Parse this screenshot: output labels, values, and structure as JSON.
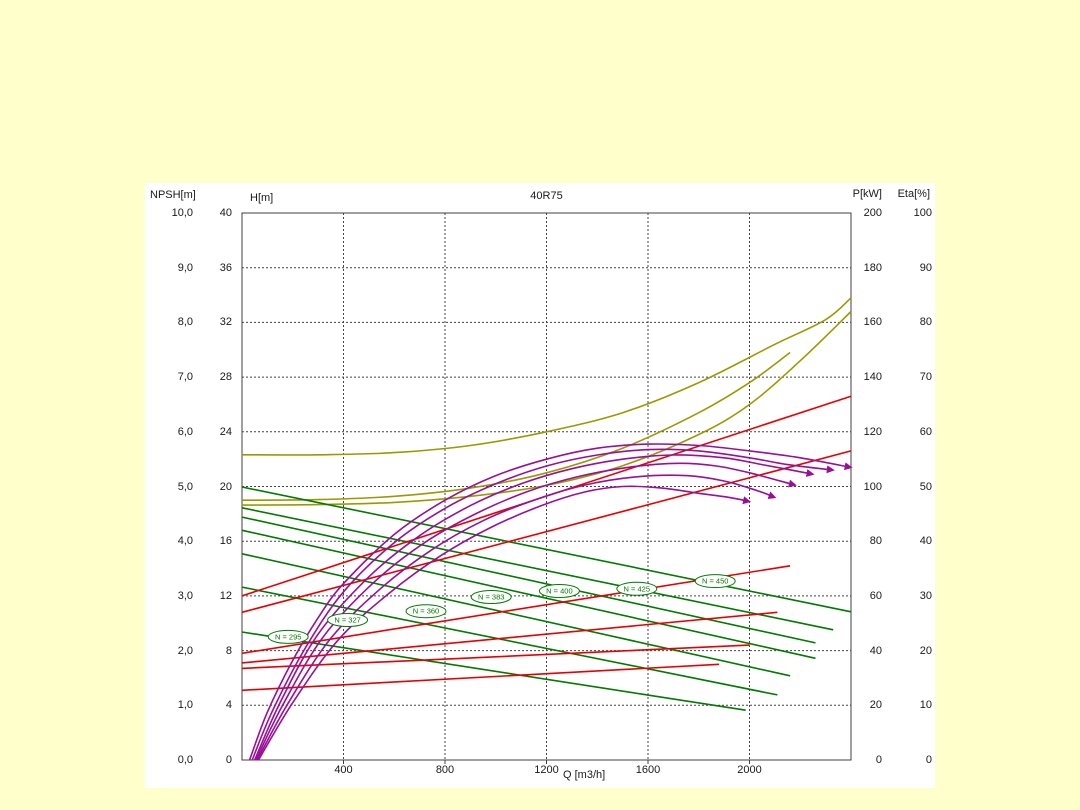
{
  "page": {
    "background": "#FFFFCC",
    "panel_background": "#FFFFFF"
  },
  "title": "40R75",
  "axes": {
    "npsh": {
      "title": "NPSH[m]",
      "max": 10,
      "ticks": [
        "10,0",
        "9,0",
        "8,0",
        "7,0",
        "6,0",
        "5,0",
        "4,0",
        "3,0",
        "2,0",
        "1,0",
        "0,0"
      ]
    },
    "h": {
      "title": "H[m]",
      "max": 40,
      "ticks": [
        "40",
        "36",
        "32",
        "28",
        "24",
        "20",
        "16",
        "12",
        "8",
        "4",
        "0"
      ]
    },
    "p": {
      "title": "P[kW]",
      "max": 200,
      "ticks": [
        "200",
        "180",
        "160",
        "140",
        "120",
        "100",
        "80",
        "60",
        "40",
        "20",
        "0"
      ]
    },
    "eta": {
      "title": "Eta[%]",
      "max": 100,
      "ticks": [
        "100",
        "90",
        "80",
        "70",
        "60",
        "50",
        "40",
        "30",
        "20",
        "10",
        "0"
      ]
    },
    "q": {
      "title": "Q [m3/h]",
      "max": 2400,
      "grid_ticks": [
        400,
        800,
        1200,
        1600,
        2000
      ],
      "tick_labels": [
        "400",
        "800",
        "1200",
        "1600",
        "2000"
      ]
    }
  },
  "chart_data": {
    "type": "line",
    "title": "40R75",
    "xlabel": "Q [m3/h]",
    "x_range": [
      0,
      2400
    ],
    "grid": true,
    "colors": {
      "head": "#971097",
      "power": "#E80000",
      "efficiency": "#007A00",
      "npsh": "#9A9A00"
    },
    "series": [
      {
        "id": "npsh-1",
        "family": "npsh",
        "axis": "npsh",
        "color": "#9A9A00",
        "arrow": false,
        "points": [
          [
            0,
            5.58
          ],
          [
            300,
            5.58
          ],
          [
            600,
            5.62
          ],
          [
            900,
            5.75
          ],
          [
            1200,
            6.0
          ],
          [
            1500,
            6.35
          ],
          [
            1800,
            6.9
          ],
          [
            2100,
            7.6
          ],
          [
            2300,
            8.05
          ],
          [
            2400,
            8.45
          ]
        ]
      },
      {
        "id": "npsh-2",
        "family": "npsh",
        "axis": "npsh",
        "color": "#9A9A00",
        "arrow": false,
        "points": [
          [
            0,
            4.75
          ],
          [
            300,
            4.76
          ],
          [
            600,
            4.82
          ],
          [
            900,
            4.97
          ],
          [
            1200,
            5.25
          ],
          [
            1500,
            5.7
          ],
          [
            1800,
            6.35
          ],
          [
            2000,
            6.9
          ],
          [
            2160,
            7.45
          ]
        ]
      },
      {
        "id": "npsh-3",
        "family": "npsh",
        "axis": "npsh",
        "color": "#9A9A00",
        "arrow": false,
        "points": [
          [
            0,
            4.66
          ],
          [
            300,
            4.67
          ],
          [
            600,
            4.71
          ],
          [
            900,
            4.82
          ],
          [
            1200,
            5.02
          ],
          [
            1500,
            5.38
          ],
          [
            1800,
            5.95
          ],
          [
            2000,
            6.5
          ],
          [
            2200,
            7.3
          ],
          [
            2400,
            8.2
          ]
        ]
      },
      {
        "id": "eta-450",
        "family": "efficiency",
        "axis": "eta",
        "color": "#007A00",
        "arrow": false,
        "points": [
          [
            0,
            49.9
          ],
          [
            2400,
            27.1
          ]
        ]
      },
      {
        "id": "eta-425",
        "family": "efficiency",
        "axis": "eta",
        "color": "#007A00",
        "arrow": false,
        "points": [
          [
            0,
            46.1
          ],
          [
            2330,
            23.8
          ]
        ]
      },
      {
        "id": "eta-400",
        "family": "efficiency",
        "axis": "eta",
        "color": "#007A00",
        "arrow": false,
        "points": [
          [
            0,
            44.4
          ],
          [
            2260,
            21.4
          ]
        ]
      },
      {
        "id": "eta-383",
        "family": "efficiency",
        "axis": "eta",
        "color": "#007A00",
        "arrow": false,
        "points": [
          [
            0,
            42.0
          ],
          [
            2260,
            18.6
          ]
        ]
      },
      {
        "id": "eta-360",
        "family": "efficiency",
        "axis": "eta",
        "color": "#007A00",
        "arrow": false,
        "points": [
          [
            0,
            37.7
          ],
          [
            2160,
            15.4
          ]
        ]
      },
      {
        "id": "eta-327",
        "family": "efficiency",
        "axis": "eta",
        "color": "#007A00",
        "arrow": false,
        "points": [
          [
            0,
            31.6
          ],
          [
            2110,
            11.9
          ]
        ]
      },
      {
        "id": "eta-295",
        "family": "efficiency",
        "axis": "eta",
        "color": "#007A00",
        "arrow": false,
        "points": [
          [
            0,
            23.4
          ],
          [
            1985,
            9.1
          ]
        ]
      },
      {
        "id": "power-1",
        "family": "power",
        "axis": "p",
        "color": "#E80000",
        "arrow": false,
        "points": [
          [
            0,
            60
          ],
          [
            2400,
            133
          ]
        ]
      },
      {
        "id": "power-2",
        "family": "power",
        "axis": "p",
        "color": "#E80000",
        "arrow": false,
        "points": [
          [
            0,
            54
          ],
          [
            2400,
            113
          ]
        ]
      },
      {
        "id": "power-3",
        "family": "power",
        "axis": "p",
        "color": "#E80000",
        "arrow": false,
        "points": [
          [
            0,
            39
          ],
          [
            2160,
            71
          ]
        ]
      },
      {
        "id": "power-4",
        "family": "power",
        "axis": "p",
        "color": "#E80000",
        "arrow": false,
        "points": [
          [
            0,
            35.5
          ],
          [
            2110,
            54
          ]
        ]
      },
      {
        "id": "power-5",
        "family": "power",
        "axis": "p",
        "color": "#E80000",
        "arrow": false,
        "points": [
          [
            0,
            33.5
          ],
          [
            2000,
            42
          ]
        ]
      },
      {
        "id": "power-6",
        "family": "power",
        "axis": "p",
        "color": "#E80000",
        "arrow": false,
        "points": [
          [
            0,
            25.5
          ],
          [
            1880,
            35
          ]
        ]
      },
      {
        "id": "head-1",
        "family": "head",
        "axis": "h",
        "color": "#971097",
        "arrow": true,
        "points": [
          [
            30,
            0
          ],
          [
            100,
            3.5
          ],
          [
            200,
            7.3
          ],
          [
            300,
            10.4
          ],
          [
            400,
            12.9
          ],
          [
            600,
            16.5
          ],
          [
            800,
            19.0
          ],
          [
            1000,
            20.8
          ],
          [
            1200,
            22.0
          ],
          [
            1400,
            22.8
          ],
          [
            1600,
            23.1
          ],
          [
            1800,
            23.0
          ],
          [
            2000,
            22.6
          ],
          [
            2200,
            22.1
          ],
          [
            2400,
            21.4
          ]
        ]
      },
      {
        "id": "head-2",
        "family": "head",
        "axis": "h",
        "color": "#971097",
        "arrow": true,
        "points": [
          [
            40,
            0
          ],
          [
            120,
            3.6
          ],
          [
            250,
            8.2
          ],
          [
            400,
            12.3
          ],
          [
            600,
            15.9
          ],
          [
            800,
            18.4
          ],
          [
            1000,
            20.2
          ],
          [
            1200,
            21.5
          ],
          [
            1400,
            22.3
          ],
          [
            1600,
            22.7
          ],
          [
            1800,
            22.6
          ],
          [
            2000,
            22.1
          ],
          [
            2150,
            21.6
          ],
          [
            2330,
            21.2
          ]
        ]
      },
      {
        "id": "head-3",
        "family": "head",
        "axis": "h",
        "color": "#971097",
        "arrow": true,
        "points": [
          [
            50,
            0
          ],
          [
            150,
            4.2
          ],
          [
            300,
            9.2
          ],
          [
            500,
            13.4
          ],
          [
            700,
            16.4
          ],
          [
            900,
            18.6
          ],
          [
            1100,
            20.2
          ],
          [
            1300,
            21.3
          ],
          [
            1500,
            22.0
          ],
          [
            1700,
            22.3
          ],
          [
            1900,
            22.1
          ],
          [
            2050,
            21.6
          ],
          [
            2250,
            20.9
          ]
        ]
      },
      {
        "id": "head-4",
        "family": "head",
        "axis": "h",
        "color": "#971097",
        "arrow": true,
        "points": [
          [
            55,
            0
          ],
          [
            160,
            4.0
          ],
          [
            320,
            9.0
          ],
          [
            520,
            13.0
          ],
          [
            720,
            15.9
          ],
          [
            920,
            18.0
          ],
          [
            1120,
            19.6
          ],
          [
            1320,
            20.7
          ],
          [
            1520,
            21.4
          ],
          [
            1720,
            21.7
          ],
          [
            1870,
            21.5
          ],
          [
            2000,
            21.0
          ],
          [
            2180,
            20.1
          ]
        ]
      },
      {
        "id": "head-5",
        "family": "head",
        "axis": "h",
        "color": "#971097",
        "arrow": true,
        "points": [
          [
            60,
            0
          ],
          [
            180,
            4.1
          ],
          [
            350,
            8.9
          ],
          [
            550,
            12.6
          ],
          [
            750,
            15.4
          ],
          [
            950,
            17.5
          ],
          [
            1150,
            19.0
          ],
          [
            1350,
            20.1
          ],
          [
            1550,
            20.7
          ],
          [
            1750,
            20.8
          ],
          [
            1900,
            20.4
          ],
          [
            2030,
            19.7
          ],
          [
            2100,
            19.2
          ]
        ]
      },
      {
        "id": "head-6",
        "family": "head",
        "axis": "h",
        "color": "#971097",
        "arrow": true,
        "points": [
          [
            65,
            0
          ],
          [
            200,
            4.2
          ],
          [
            380,
            8.8
          ],
          [
            580,
            12.2
          ],
          [
            780,
            14.9
          ],
          [
            980,
            17.0
          ],
          [
            1180,
            18.6
          ],
          [
            1350,
            19.6
          ],
          [
            1500,
            20.0
          ],
          [
            1650,
            19.9
          ],
          [
            1800,
            19.5
          ],
          [
            1920,
            19.2
          ],
          [
            2000,
            18.9
          ]
        ]
      }
    ],
    "speed_labels": [
      {
        "text": "N = 295",
        "q": 182,
        "eta": 22.5
      },
      {
        "text": "N = 327",
        "q": 416,
        "eta": 25.6
      },
      {
        "text": "N = 360",
        "q": 725,
        "eta": 27.2
      },
      {
        "text": "N = 383",
        "q": 982,
        "eta": 29.8
      },
      {
        "text": "N = 400",
        "q": 1251,
        "eta": 30.9
      },
      {
        "text": "N = 425",
        "q": 1556,
        "eta": 31.3
      },
      {
        "text": "N = 450",
        "q": 1865,
        "eta": 32.7
      }
    ]
  }
}
